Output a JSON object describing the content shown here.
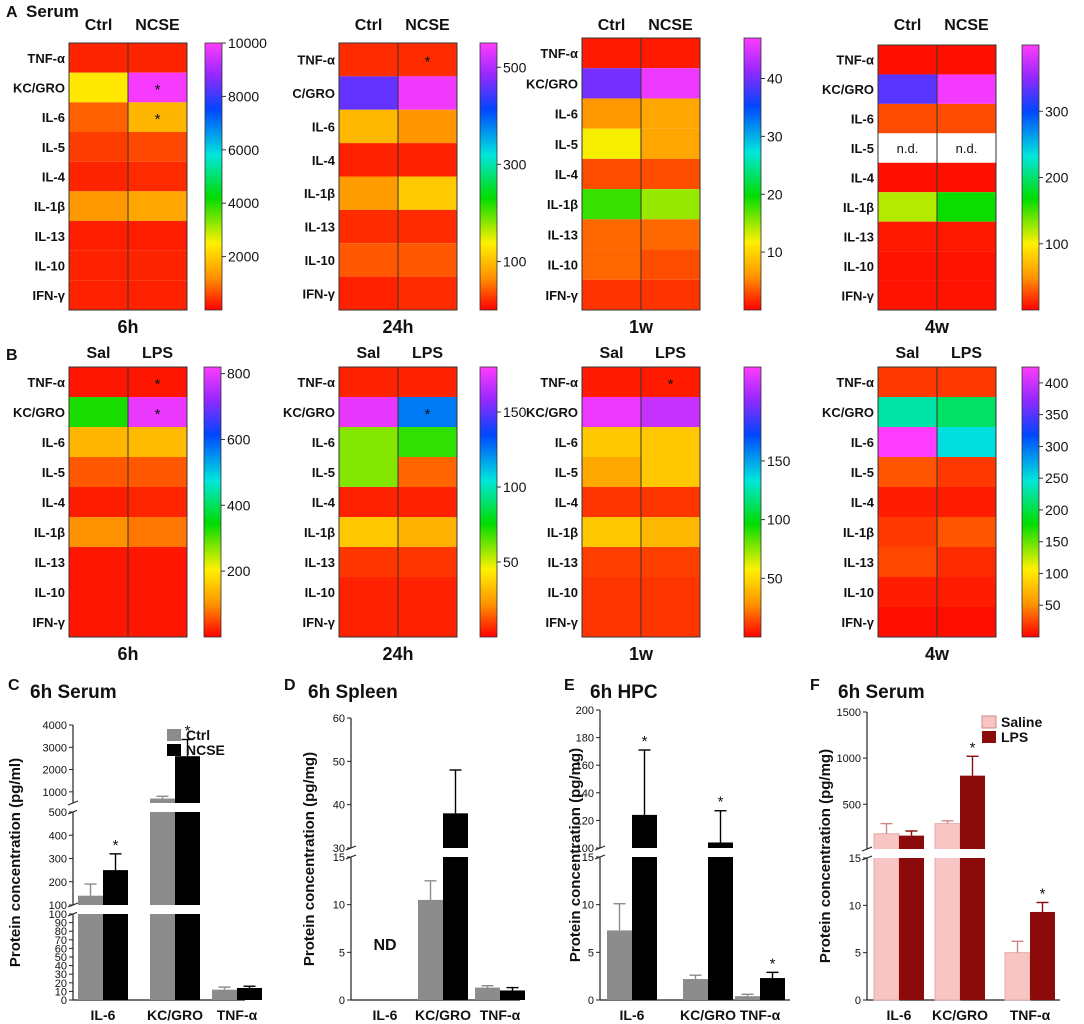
{
  "figure": {
    "row_a_label": "A",
    "row_a_title": "Serum",
    "row_b_label": "B"
  },
  "chart_data": [
    {
      "type": "heatmap",
      "panel": "A",
      "section": "Serum",
      "timepoint": "6h",
      "columns": [
        "Ctrl",
        "NCSE"
      ],
      "rows": [
        "TNF-α",
        "KC/GRO",
        "IL-6",
        "IL-5",
        "IL-4",
        "IL-1β",
        "IL-13",
        "IL-10",
        "IFN-γ"
      ],
      "values": [
        [
          300,
          300
        ],
        [
          2400,
          9900
        ],
        [
          800,
          1700
        ],
        [
          500,
          600
        ],
        [
          300,
          350
        ],
        [
          1300,
          1500
        ],
        [
          250,
          250
        ],
        [
          280,
          300
        ],
        [
          280,
          280
        ]
      ],
      "significance": [
        [
          false,
          false
        ],
        [
          false,
          true
        ],
        [
          false,
          true
        ],
        [
          false,
          false
        ],
        [
          false,
          false
        ],
        [
          false,
          false
        ],
        [
          false,
          false
        ],
        [
          false,
          false
        ],
        [
          false,
          false
        ]
      ],
      "colorbar": {
        "min": 0,
        "max": 10000,
        "ticks": [
          2000,
          4000,
          6000,
          8000,
          10000
        ]
      }
    },
    {
      "type": "heatmap",
      "panel": "A",
      "timepoint": "24h",
      "columns": [
        "Ctrl",
        "NCSE"
      ],
      "rows": [
        "TNF-α",
        "C/GRO",
        "IL-6",
        "IL-4",
        "IL-1β",
        "IL-13",
        "IL-10",
        "IFN-γ"
      ],
      "values": [
        [
          20,
          20
        ],
        [
          460,
          540
        ],
        [
          95,
          70
        ],
        [
          15,
          15
        ],
        [
          75,
          110
        ],
        [
          20,
          20
        ],
        [
          40,
          40
        ],
        [
          15,
          20
        ]
      ],
      "significance": [
        [
          false,
          true
        ],
        [
          false,
          false
        ],
        [
          false,
          false
        ],
        [
          false,
          false
        ],
        [
          false,
          false
        ],
        [
          false,
          false
        ],
        [
          false,
          false
        ],
        [
          false,
          false
        ]
      ],
      "colorbar": {
        "min": 0,
        "max": 550,
        "ticks": [
          100,
          300,
          500
        ]
      }
    },
    {
      "type": "heatmap",
      "panel": "A",
      "timepoint": "1w",
      "columns": [
        "Ctrl",
        "NCSE"
      ],
      "rows": [
        "TNF-α",
        "KC/GRO",
        "IL-6",
        "IL-5",
        "IL-4",
        "IL-1β",
        "IL-13",
        "IL-10",
        "IFN-γ"
      ],
      "values": [
        [
          1,
          1
        ],
        [
          40,
          46
        ],
        [
          6,
          7
        ],
        [
          12,
          7
        ],
        [
          3,
          3
        ],
        [
          18,
          15
        ],
        [
          4,
          4
        ],
        [
          4,
          3
        ],
        [
          2,
          2
        ]
      ],
      "significance": [
        [
          false,
          false
        ],
        [
          false,
          false
        ],
        [
          false,
          false
        ],
        [
          false,
          false
        ],
        [
          false,
          false
        ],
        [
          false,
          false
        ],
        [
          false,
          false
        ],
        [
          false,
          false
        ],
        [
          false,
          false
        ]
      ],
      "colorbar": {
        "min": 0,
        "max": 47,
        "ticks": [
          10,
          20,
          30,
          40
        ]
      }
    },
    {
      "type": "heatmap",
      "panel": "A",
      "timepoint": "4w",
      "columns": [
        "Ctrl",
        "NCSE"
      ],
      "rows": [
        "TNF-α",
        "KC/GRO",
        "IL-6",
        "IL-5",
        "IL-4",
        "IL-1β",
        "IL-13",
        "IL-10",
        "IFN-γ"
      ],
      "values": [
        [
          5,
          5
        ],
        [
          330,
          395
        ],
        [
          25,
          25
        ],
        [
          null,
          null
        ],
        [
          5,
          5
        ],
        [
          120,
          165
        ],
        [
          8,
          8
        ],
        [
          6,
          6
        ],
        [
          6,
          6
        ]
      ],
      "cell_text": [
        [
          "",
          ""
        ],
        [
          "",
          ""
        ],
        [
          "",
          ""
        ],
        [
          "n.d.",
          "n.d."
        ],
        [
          "",
          ""
        ],
        [
          "",
          ""
        ],
        [
          "",
          ""
        ],
        [
          "",
          ""
        ],
        [
          "",
          ""
        ]
      ],
      "significance": [
        [
          false,
          false
        ],
        [
          false,
          false
        ],
        [
          false,
          false
        ],
        [
          false,
          false
        ],
        [
          false,
          false
        ],
        [
          false,
          false
        ],
        [
          false,
          false
        ],
        [
          false,
          false
        ],
        [
          false,
          false
        ]
      ],
      "colorbar": {
        "min": 0,
        "max": 400,
        "ticks": [
          100,
          200,
          300
        ]
      }
    },
    {
      "type": "heatmap",
      "panel": "B",
      "timepoint": "6h",
      "columns": [
        "Sal",
        "LPS"
      ],
      "rows": [
        "TNF-α",
        "KC/GRO",
        "IL-6",
        "IL-5",
        "IL-4",
        "IL-1β",
        "IL-13",
        "IL-10",
        "IFN-γ"
      ],
      "values": [
        [
          15,
          15
        ],
        [
          330,
          800
        ],
        [
          140,
          145
        ],
        [
          60,
          60
        ],
        [
          20,
          25
        ],
        [
          100,
          80
        ],
        [
          15,
          15
        ],
        [
          15,
          15
        ],
        [
          15,
          15
        ]
      ],
      "significance": [
        [
          false,
          true
        ],
        [
          false,
          true
        ],
        [
          false,
          false
        ],
        [
          false,
          false
        ],
        [
          false,
          false
        ],
        [
          false,
          false
        ],
        [
          false,
          false
        ],
        [
          false,
          false
        ],
        [
          false,
          false
        ]
      ],
      "colorbar": {
        "min": 0,
        "max": 820,
        "ticks": [
          200,
          400,
          600,
          800
        ]
      }
    },
    {
      "type": "heatmap",
      "panel": "B",
      "timepoint": "24h",
      "columns": [
        "Sal",
        "LPS"
      ],
      "rows": [
        "TNF-α",
        "KC/GRO",
        "IL-6",
        "IL-5",
        "IL-4",
        "IL-1β",
        "IL-13",
        "IL-10",
        "IFN-γ"
      ],
      "values": [
        [
          5,
          5
        ],
        [
          175,
          125
        ],
        [
          60,
          70
        ],
        [
          60,
          15
        ],
        [
          5,
          5
        ],
        [
          35,
          30
        ],
        [
          8,
          8
        ],
        [
          5,
          5
        ],
        [
          5,
          5
        ]
      ],
      "significance": [
        [
          false,
          false
        ],
        [
          false,
          true
        ],
        [
          false,
          false
        ],
        [
          false,
          false
        ],
        [
          false,
          false
        ],
        [
          false,
          false
        ],
        [
          false,
          false
        ],
        [
          false,
          false
        ],
        [
          false,
          false
        ]
      ],
      "colorbar": {
        "min": 0,
        "max": 180,
        "ticks": [
          50,
          100,
          150
        ]
      }
    },
    {
      "type": "heatmap",
      "panel": "B",
      "timepoint": "1w",
      "columns": [
        "Sal",
        "LPS"
      ],
      "rows": [
        "TNF-α",
        "KC/GRO",
        "IL-6",
        "IL-5",
        "IL-4",
        "IL-1β",
        "IL-13",
        "IL-10",
        "IFN-γ"
      ],
      "values": [
        [
          5,
          5
        ],
        [
          225,
          215
        ],
        [
          45,
          45
        ],
        [
          35,
          45
        ],
        [
          10,
          10
        ],
        [
          45,
          40
        ],
        [
          12,
          12
        ],
        [
          10,
          10
        ],
        [
          10,
          10
        ]
      ],
      "significance": [
        [
          false,
          true
        ],
        [
          false,
          false
        ],
        [
          false,
          false
        ],
        [
          false,
          false
        ],
        [
          false,
          false
        ],
        [
          false,
          false
        ],
        [
          false,
          false
        ],
        [
          false,
          false
        ],
        [
          false,
          false
        ]
      ],
      "colorbar": {
        "min": 0,
        "max": 230,
        "ticks": [
          50,
          100,
          150
        ]
      }
    },
    {
      "type": "heatmap",
      "panel": "B",
      "timepoint": "4w",
      "columns": [
        "Sal",
        "LPS"
      ],
      "rows": [
        "TNF-α",
        "KC/GRO",
        "IL-6",
        "IL-5",
        "IL-4",
        "IL-1β",
        "IL-13",
        "IL-10",
        "IFN-γ"
      ],
      "values": [
        [
          20,
          20
        ],
        [
          230,
          210
        ],
        [
          425,
          250
        ],
        [
          30,
          20
        ],
        [
          10,
          10
        ],
        [
          20,
          30
        ],
        [
          25,
          15
        ],
        [
          10,
          10
        ],
        [
          5,
          5
        ]
      ],
      "significance": [
        [
          false,
          false
        ],
        [
          false,
          false
        ],
        [
          false,
          false
        ],
        [
          false,
          false
        ],
        [
          false,
          false
        ],
        [
          false,
          false
        ],
        [
          false,
          false
        ],
        [
          false,
          false
        ],
        [
          false,
          false
        ]
      ],
      "colorbar": {
        "min": 0,
        "max": 425,
        "ticks": [
          50,
          100,
          150,
          200,
          250,
          300,
          350,
          400
        ]
      }
    },
    {
      "type": "bar",
      "panel": "C",
      "title": "6h Serum",
      "ylabel": "Protein concentration (pg/ml)",
      "categories": [
        "IL-6",
        "KC/GRO",
        "TNF-α"
      ],
      "series": [
        {
          "name": "Ctrl",
          "color": "#8c8c8c",
          "values": [
            140,
            700,
            12
          ],
          "errors": [
            50,
            100,
            3
          ]
        },
        {
          "name": "NCSE",
          "color": "#000000",
          "values": [
            250,
            2600,
            14
          ],
          "errors": [
            70,
            750,
            2
          ]
        }
      ],
      "significance": [
        [
          false,
          true
        ],
        [
          false,
          true
        ],
        [
          false,
          false
        ]
      ],
      "legend": "top-right",
      "axis_segments": [
        {
          "range": [
            0,
            100
          ],
          "ticks": [
            0,
            10,
            20,
            30,
            40,
            50,
            60,
            70,
            80,
            90,
            100
          ]
        },
        {
          "range": [
            100,
            500
          ],
          "ticks": [
            100,
            200,
            300,
            400,
            500
          ]
        },
        {
          "range": [
            500,
            4000
          ],
          "ticks": [
            1000,
            2000,
            3000,
            4000
          ]
        }
      ]
    },
    {
      "type": "bar",
      "panel": "D",
      "title": "6h Spleen",
      "ylabel": "Protein concentration (pg/mg)",
      "categories": [
        "IL-6",
        "KC/GRO",
        "TNF-α"
      ],
      "series": [
        {
          "name": "Ctrl",
          "color": "#8c8c8c",
          "values": [
            null,
            10.5,
            1.3
          ],
          "errors": [
            null,
            2.0,
            0.2
          ]
        },
        {
          "name": "NCSE",
          "color": "#000000",
          "values": [
            null,
            38,
            1.0
          ],
          "errors": [
            null,
            10,
            0.3
          ]
        }
      ],
      "annotations": [
        {
          "category": "IL-6",
          "text": "ND"
        }
      ],
      "axis_segments": [
        {
          "range": [
            0,
            15
          ],
          "ticks": [
            0,
            5,
            10,
            15
          ]
        },
        {
          "range": [
            30,
            60
          ],
          "ticks": [
            30,
            40,
            50,
            60
          ]
        }
      ]
    },
    {
      "type": "bar",
      "panel": "E",
      "title": "6h HPC",
      "ylabel": "Protein concentration (pg/mg)",
      "categories": [
        "IL-6",
        "KC/GRO",
        "TNF-α"
      ],
      "series": [
        {
          "name": "Ctrl",
          "color": "#8c8c8c",
          "values": [
            7.3,
            2.2,
            0.4
          ],
          "errors": [
            2.8,
            0.4,
            0.2
          ]
        },
        {
          "name": "NCSE",
          "color": "#000000",
          "values": [
            124,
            104,
            2.3
          ],
          "errors": [
            47,
            23,
            0.6
          ]
        }
      ],
      "significance": [
        [
          false,
          true
        ],
        [
          false,
          true
        ],
        [
          false,
          true
        ]
      ],
      "axis_segments": [
        {
          "range": [
            0,
            15
          ],
          "ticks": [
            0,
            5,
            10,
            15
          ]
        },
        {
          "range": [
            100,
            200
          ],
          "ticks": [
            100,
            120,
            140,
            160,
            180,
            200
          ]
        }
      ]
    },
    {
      "type": "bar",
      "panel": "F",
      "title": "6h Serum",
      "ylabel": "Protein concentration (pg/mg)",
      "categories": [
        "IL-6",
        "KC/GRO",
        "TNF-α"
      ],
      "series": [
        {
          "name": "Saline",
          "color": "#f7c6c4",
          "values": [
            180,
            290,
            5.0
          ],
          "errors": [
            110,
            30,
            1.2
          ]
        },
        {
          "name": "LPS",
          "color": "#8b0a0a",
          "values": [
            160,
            810,
            9.3
          ],
          "errors": [
            50,
            210,
            1.0
          ]
        }
      ],
      "significance": [
        [
          false,
          false
        ],
        [
          false,
          true
        ],
        [
          false,
          true
        ]
      ],
      "legend": "top-right",
      "axis_segments": [
        {
          "range": [
            0,
            15
          ],
          "ticks": [
            0,
            5,
            10,
            15
          ]
        },
        {
          "range": [
            15,
            1500
          ],
          "ticks": [
            500,
            1000,
            1500
          ]
        }
      ]
    }
  ]
}
